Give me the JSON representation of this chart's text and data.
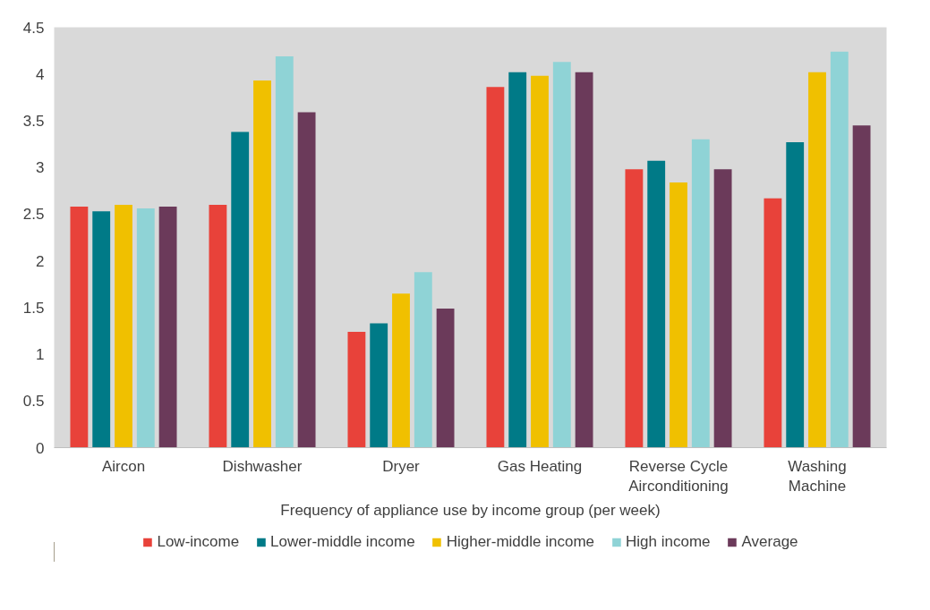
{
  "chart_data": {
    "type": "bar",
    "xlabel": "Frequency of appliance use by income group (per week)",
    "categories": [
      "Aircon",
      "Dishwasher",
      "Dryer",
      "Gas Heating",
      "Reverse Cycle\nAirconditioning",
      "Washing\nMachine"
    ],
    "series": [
      {
        "name": "Low-income",
        "color": "#e8423a",
        "values": [
          2.58,
          2.6,
          1.24,
          3.86,
          2.98,
          2.67
        ]
      },
      {
        "name": "Lower-middle income",
        "color": "#007a87",
        "values": [
          2.53,
          3.38,
          1.33,
          4.02,
          3.07,
          3.27
        ]
      },
      {
        "name": "Higher-middle income",
        "color": "#f0c000",
        "values": [
          2.6,
          3.93,
          1.65,
          3.98,
          2.84,
          4.02
        ]
      },
      {
        "name": "High income",
        "color": "#8fd3d6",
        "values": [
          2.56,
          4.19,
          1.88,
          4.13,
          3.3,
          4.24
        ]
      },
      {
        "name": "Average",
        "color": "#6b3a5a",
        "values": [
          2.58,
          3.59,
          1.49,
          4.02,
          2.98,
          3.45
        ]
      }
    ],
    "ylim": [
      0,
      4.5
    ],
    "yticks": [
      0,
      0.5,
      1,
      1.5,
      2,
      2.5,
      3,
      3.5,
      4,
      4.5
    ],
    "grid": false,
    "legend": "bottom"
  }
}
